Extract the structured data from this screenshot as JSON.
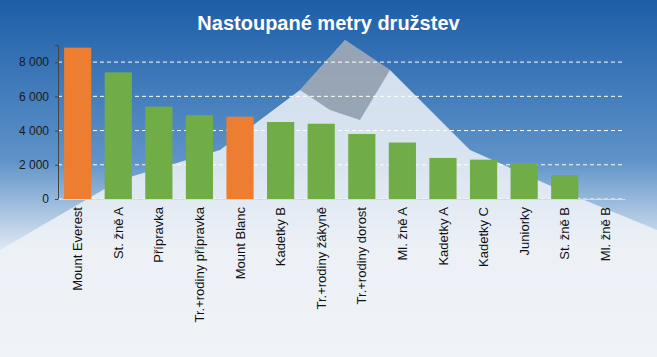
{
  "chart_data": {
    "type": "bar",
    "title": "Nastoupané metry družstev",
    "categories": [
      "Mount Everest",
      "St. žně A",
      "Přípravka",
      "Tr.+rodiny přípravka",
      "Mount Blanc",
      "Kadetky B",
      "Tr.+rodiny žákyně",
      "Tr.+rodiny dorost",
      "Ml. žně A",
      "Kadetky A",
      "Kadetky C",
      "Juniorky",
      "St. žně B",
      "Ml. žně B"
    ],
    "values": [
      8848,
      7400,
      5400,
      4900,
      4808,
      4500,
      4400,
      3800,
      3300,
      2400,
      2300,
      2100,
      1400,
      0
    ],
    "colors": [
      "#ed7d31",
      "#70ad47",
      "#70ad47",
      "#70ad47",
      "#ed7d31",
      "#70ad47",
      "#70ad47",
      "#70ad47",
      "#70ad47",
      "#70ad47",
      "#70ad47",
      "#70ad47",
      "#70ad47",
      "#70ad47"
    ],
    "ylim": [
      0,
      9000
    ],
    "yticks": [
      0,
      {
        "value": 2000,
        "label": "2 000"
      },
      {
        "value": 4000,
        "label": "4 000"
      },
      {
        "value": 6000,
        "label": "6 000"
      },
      {
        "value": 8000,
        "label": "8 000"
      }
    ],
    "grid": true
  }
}
